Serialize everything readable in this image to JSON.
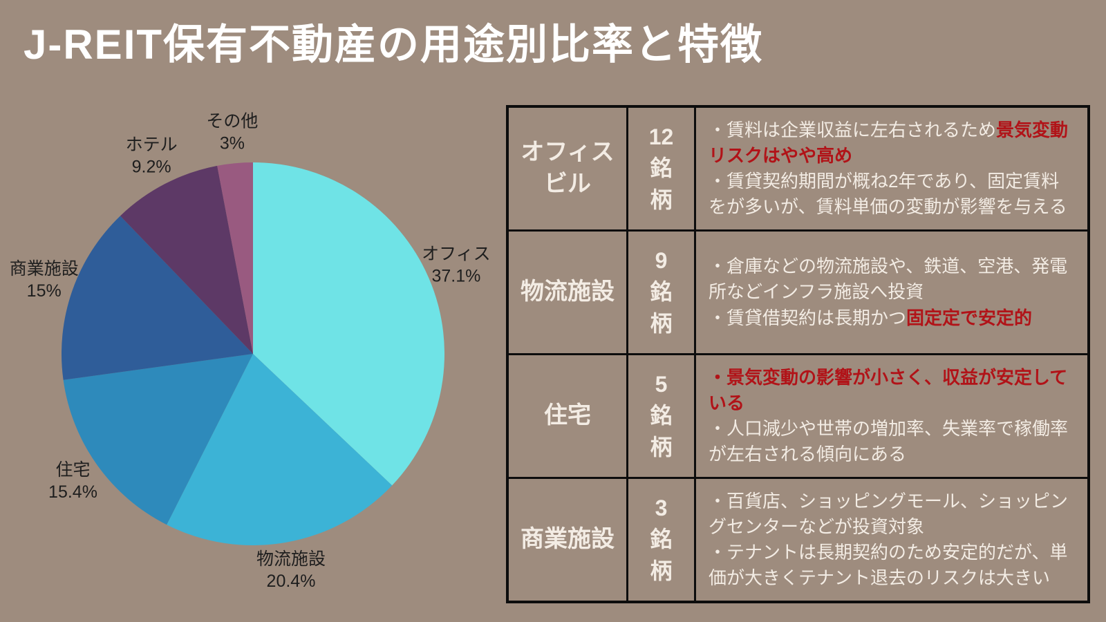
{
  "title": "J-REIT保有不動産の用途別比率と特徴",
  "colors": {
    "background": "#9e8c7e",
    "title_text": "#ffffff",
    "table_border": "#0d0d0d",
    "table_text": "#f3ece4",
    "highlight_red": "#b11318",
    "pie_label_text": "#1e1e1e"
  },
  "chart_data": {
    "type": "pie",
    "title": "",
    "legend_position": "none",
    "start_angle_deg_from_top": 0,
    "direction": "clockwise",
    "slices": [
      {
        "label": "オフィス",
        "value": 37.1,
        "pct_label": "37.1%",
        "color": "#6fe3e6"
      },
      {
        "label": "物流施設",
        "value": 20.4,
        "pct_label": "20.4%",
        "color": "#3cb3d6"
      },
      {
        "label": "住宅",
        "value": 15.4,
        "pct_label": "15.4%",
        "color": "#2e8abb"
      },
      {
        "label": "商業施設",
        "value": 15,
        "pct_label": "15%",
        "color": "#2f5d99"
      },
      {
        "label": "ホテル",
        "value": 9.2,
        "pct_label": "9.2%",
        "color": "#5d3966"
      },
      {
        "label": "その他",
        "value": 3,
        "pct_label": "3%",
        "color": "#995a80"
      }
    ]
  },
  "table": {
    "rows": [
      {
        "category_lines": [
          "オフィス",
          "ビル"
        ],
        "count_lines": [
          "12",
          "銘",
          "柄"
        ],
        "bullets": [
          {
            "pre": "・賃料は企業収益に左右されるため",
            "red": "景気変動リスクはやや高め",
            "post": ""
          },
          {
            "pre": "・賃貸契約期間が概ね2年であり、固定賃料をが多いが、賃料単価の変動が影響を与える",
            "red": "",
            "post": ""
          }
        ]
      },
      {
        "category_lines": [
          "物流施設"
        ],
        "count_lines": [
          "9",
          "銘",
          "柄"
        ],
        "bullets": [
          {
            "pre": "・倉庫などの物流施設や、鉄道、空港、発電所などインフラ施設へ投資",
            "red": "",
            "post": ""
          },
          {
            "pre": "・賃貸借契約は長期かつ",
            "red": "固定定で安定的",
            "post": ""
          }
        ]
      },
      {
        "category_lines": [
          "住宅"
        ],
        "count_lines": [
          "5",
          "銘",
          "柄"
        ],
        "bullets": [
          {
            "pre": "",
            "red": "・景気変動の影響が小さく、収益が安定している",
            "post": ""
          },
          {
            "pre": "・人口減少や世帯の増加率、失業率で稼働率が左右される傾向にある",
            "red": "",
            "post": ""
          }
        ]
      },
      {
        "category_lines": [
          "商業施設"
        ],
        "count_lines": [
          "3",
          "銘",
          "柄"
        ],
        "bullets": [
          {
            "pre": "・百貨店、ショッピングモール、ショッピングセンターなどが投資対象",
            "red": "",
            "post": ""
          },
          {
            "pre": "・テナントは長期契約のため安定的だが、単価が大きくテナント退去のリスクは大きい",
            "red": "",
            "post": ""
          }
        ]
      }
    ]
  }
}
